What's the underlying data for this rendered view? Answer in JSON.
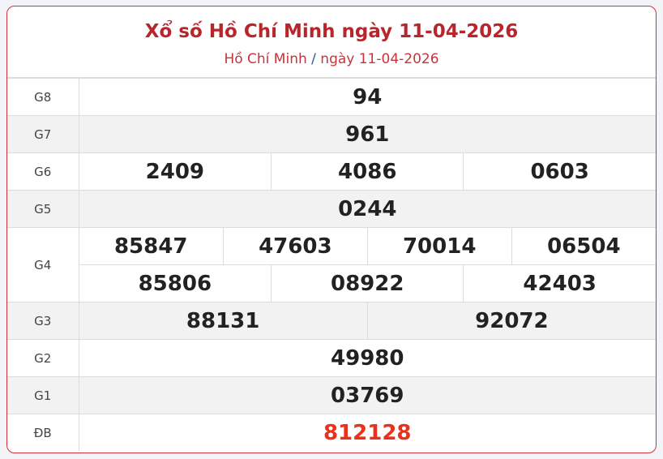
{
  "header": {
    "title": "Xổ số Hồ Chí Minh ngày 11-04-2026",
    "breadcrumb_region": "Hồ Chí Minh",
    "breadcrumb_sep": "/",
    "breadcrumb_date": "ngày 11-04-2026"
  },
  "colors": {
    "accent": "#b8262b",
    "special": "#e8321e",
    "border": "#d0303a"
  },
  "prizes": {
    "g8": {
      "label": "G8",
      "values": [
        "94"
      ]
    },
    "g7": {
      "label": "G7",
      "values": [
        "961"
      ]
    },
    "g6": {
      "label": "G6",
      "values": [
        "2409",
        "4086",
        "0603"
      ]
    },
    "g5": {
      "label": "G5",
      "values": [
        "0244"
      ]
    },
    "g4": {
      "label": "G4",
      "values": [
        "85847",
        "47603",
        "70014",
        "06504",
        "85806",
        "08922",
        "42403"
      ]
    },
    "g3": {
      "label": "G3",
      "values": [
        "88131",
        "92072"
      ]
    },
    "g2": {
      "label": "G2",
      "values": [
        "49980"
      ]
    },
    "g1": {
      "label": "G1",
      "values": [
        "03769"
      ]
    },
    "db": {
      "label": "ĐB",
      "values": [
        "812128"
      ]
    }
  }
}
